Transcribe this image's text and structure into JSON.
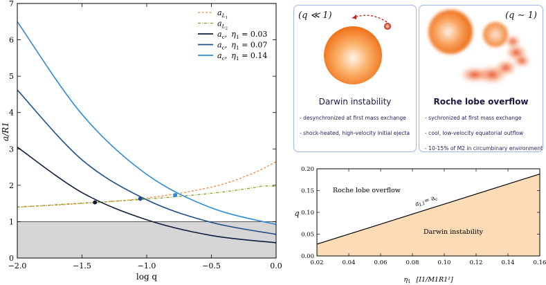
{
  "chart_data": [
    {
      "type": "line",
      "xlabel": "log q",
      "ylabel": "a/R1",
      "xlim": [
        -2.0,
        0.0
      ],
      "ylim": [
        0,
        7
      ],
      "xticks": [
        "−2.0",
        "−1.5",
        "−1.0",
        "−0.5",
        "0.0"
      ],
      "xtick_values": [
        -2.0,
        -1.5,
        -1.0,
        -0.5,
        0.0
      ],
      "yticks": [
        "0",
        "1",
        "2",
        "3",
        "4",
        "5",
        "6",
        "7"
      ],
      "ytick_values": [
        0,
        1,
        2,
        3,
        4,
        5,
        6,
        7
      ],
      "shaded_region": {
        "y_from": 0,
        "y_to": 1,
        "color": "#d6d6d6"
      },
      "series": [
        {
          "name": "aL1",
          "label_main": "a",
          "label_sub": "L",
          "label_subsub": "1",
          "color": "#f08a3c",
          "style": "dotted",
          "x": [
            -2.0,
            -1.5,
            -1.0,
            -0.5,
            -0.2,
            0.0
          ],
          "y": [
            1.4,
            1.5,
            1.65,
            1.95,
            2.3,
            2.65
          ]
        },
        {
          "name": "aL2",
          "label_main": "a",
          "label_sub": "L",
          "label_subsub": "2",
          "color": "#8aa020",
          "style": "dashdot",
          "x": [
            -2.0,
            -1.5,
            -1.0,
            -0.5,
            -0.2,
            -0.1,
            0.0
          ],
          "y": [
            1.4,
            1.51,
            1.62,
            1.78,
            1.92,
            1.98,
            1.97
          ]
        },
        {
          "name": "ac_0.03",
          "label_main": "a",
          "label_sub": "c",
          "label_eta": "η",
          "label_eta_sub": "1",
          "label_value": "= 0.03",
          "color": "#0d1e3c",
          "style": "solid",
          "x": [
            -2.0,
            -1.5,
            -1.0,
            -0.5,
            0.0
          ],
          "y": [
            3.05,
            1.8,
            1.05,
            0.62,
            0.42
          ]
        },
        {
          "name": "ac_0.07",
          "label_main": "a",
          "label_sub": "c",
          "label_eta": "η",
          "label_eta_sub": "1",
          "label_value": "= 0.07",
          "color": "#1b4f86",
          "style": "solid",
          "x": [
            -2.0,
            -1.5,
            -1.0,
            -0.5,
            0.0
          ],
          "y": [
            4.62,
            2.7,
            1.6,
            0.98,
            0.65
          ]
        },
        {
          "name": "ac_0.14",
          "label_main": "a",
          "label_sub": "c",
          "label_eta": "η",
          "label_eta_sub": "1",
          "label_value": "= 0.14",
          "color": "#2b8ade",
          "style": "solid",
          "x": [
            -2.0,
            -1.5,
            -1.0,
            -0.5,
            0.0
          ],
          "y": [
            6.5,
            3.95,
            2.3,
            1.38,
            0.92
          ]
        }
      ],
      "markers": [
        {
          "x": -1.4,
          "y": 1.53,
          "color": "#0d1e3c"
        },
        {
          "x": -1.05,
          "y": 1.63,
          "color": "#1b4f86"
        },
        {
          "x": -0.78,
          "y": 1.73,
          "color": "#2b8ade"
        }
      ]
    },
    {
      "type": "area",
      "xlabel_main": "η",
      "xlabel_sub": "1",
      "xlabel_bracket": "[I1/M1R1²]",
      "ylabel": "q",
      "xlim": [
        0.02,
        0.16
      ],
      "ylim": [
        0.0,
        0.2
      ],
      "xticks": [
        "0.02",
        "0.04",
        "0.06",
        "0.08",
        "0.10",
        "0.12",
        "0.14",
        "0.16"
      ],
      "xtick_values": [
        0.02,
        0.04,
        0.06,
        0.08,
        0.1,
        0.12,
        0.14,
        0.16
      ],
      "yticks": [
        "0.00",
        "0.05",
        "0.10",
        "0.15",
        "0.20"
      ],
      "ytick_values": [
        0.0,
        0.05,
        0.1,
        0.15,
        0.2
      ],
      "boundary": {
        "x": [
          0.02,
          0.16
        ],
        "y": [
          0.027,
          0.188
        ]
      },
      "fill_color": "#fbdcb6",
      "annotations": {
        "upper_region": "Roche lobe overflow",
        "lower_region": "Darwin instability",
        "line_label_main": "a",
        "line_label_sub": "L1",
        "line_label_rest": "= a",
        "line_label_rest_sub": "c"
      }
    }
  ],
  "panels": {
    "darwin": {
      "corner_label": "(q ≪ 1)",
      "title": "Darwin instability",
      "bullets": [
        "- desynchronized at first mass exchange",
        "- shock-heated, high-velocity initial ejecta"
      ]
    },
    "roche": {
      "corner_label": "(q ∼ 1)",
      "title": "Roche lobe overflow",
      "bullets": [
        "- sychronized at first mass exchange",
        "- cool, low-velocity equatorial outflow",
        "- 10-15% of M2 in circumbinary environment"
      ]
    }
  }
}
